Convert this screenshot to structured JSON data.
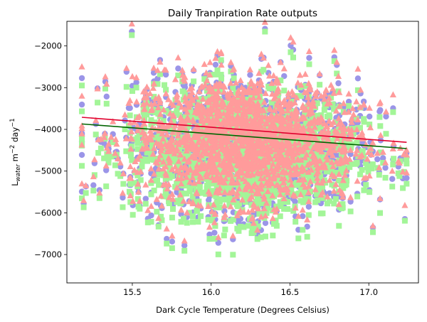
{
  "chart_data": {
    "type": "scatter",
    "title": "Daily Tranpiration Rate outputs",
    "xlabel": "Dark Cycle Temperature (Degrees Celsius)",
    "ylabel": {
      "base": "L",
      "sub": "water",
      "unit_m": " m",
      "exp1": "−2",
      "unit_day": " day",
      "exp2": "−1"
    },
    "xlim": [
      15.085,
      17.315
    ],
    "ylim": [
      -7680,
      -1410
    ],
    "xticks": [
      15.5,
      16.0,
      16.5,
      17.0
    ],
    "xtick_labels": [
      "15.5",
      "16.0",
      "16.5",
      "17.0"
    ],
    "yticks": [
      -7000,
      -6000,
      -5000,
      -4000,
      -3000,
      -2000
    ],
    "ytick_labels": [
      "−7000",
      "−6000",
      "−5000",
      "−4000",
      "−3000",
      "−2000"
    ],
    "grid": false,
    "legend": "none",
    "x_range": [
      15.18,
      17.24
    ],
    "y_center": -4350,
    "series": [
      {
        "marker": "circle",
        "color": "#9b95e8"
      },
      {
        "marker": "square",
        "color": "#a3f598"
      },
      {
        "marker": "triangle",
        "color": "#ff9b9b"
      }
    ],
    "fit_lines": [
      {
        "x": [
          15.18,
          17.24
        ],
        "y": [
          -3710,
          -4310
        ],
        "color": "#e0002e"
      },
      {
        "x": [
          15.18,
          17.24
        ],
        "y": [
          -3870,
          -4460
        ],
        "color": "#006400"
      }
    ]
  }
}
